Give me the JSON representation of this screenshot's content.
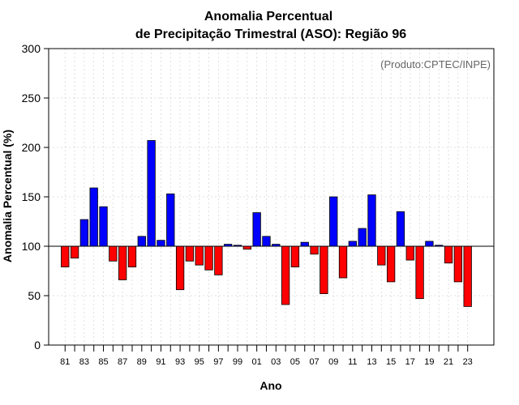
{
  "chart_data": {
    "type": "bar",
    "title_line1": "Anomalia Percentual",
    "title_line2": "de Precipitação Trimestral (ASO): Região 96",
    "credit": "(Produto:CPTEC/INPE)",
    "xlabel": "Ano",
    "ylabel": "Anomalia Percentual (%)",
    "baseline": 100,
    "ylim": [
      0,
      300
    ],
    "yticks": [
      0,
      50,
      100,
      150,
      200,
      250,
      300
    ],
    "x_tick_labels": [
      "81",
      "83",
      "85",
      "87",
      "89",
      "91",
      "93",
      "95",
      "97",
      "99",
      "01",
      "03",
      "05",
      "07",
      "09",
      "11",
      "13",
      "15",
      "17",
      "19",
      "21",
      "23"
    ],
    "categories": [
      "1981",
      "1982",
      "1983",
      "1984",
      "1985",
      "1986",
      "1987",
      "1988",
      "1989",
      "1990",
      "1991",
      "1992",
      "1993",
      "1994",
      "1995",
      "1996",
      "1997",
      "1998",
      "1999",
      "2000",
      "2001",
      "2002",
      "2003",
      "2004",
      "2005",
      "2006",
      "2007",
      "2008",
      "2009",
      "2010",
      "2011",
      "2012",
      "2013",
      "2014",
      "2015",
      "2016",
      "2017",
      "2018",
      "2019",
      "2020",
      "2021",
      "2022",
      "2023"
    ],
    "values": [
      79,
      88,
      127,
      159,
      140,
      85,
      66,
      79,
      110,
      207,
      106,
      153,
      56,
      85,
      81,
      76,
      71,
      102,
      101,
      97,
      134,
      110,
      102,
      41,
      79,
      104,
      92,
      52,
      150,
      68,
      105,
      118,
      152,
      81,
      64,
      135,
      86,
      47,
      105,
      101,
      83,
      64,
      39
    ],
    "colors": {
      "above": "#0000ff",
      "below": "#ff0000",
      "edge": "#000000"
    }
  }
}
